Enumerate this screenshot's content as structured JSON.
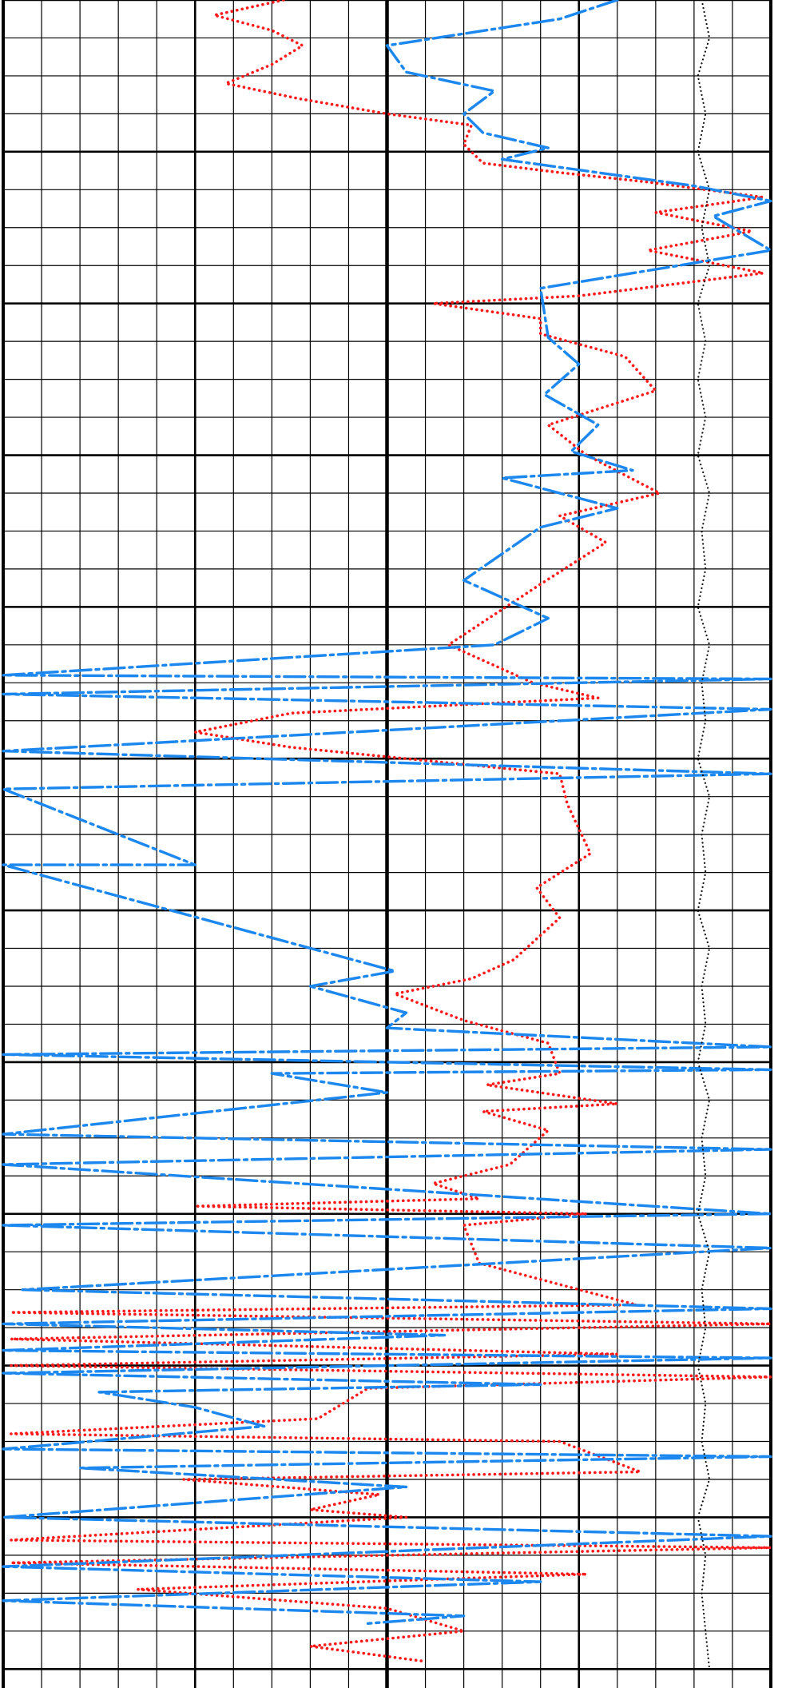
{
  "chart_data": {
    "type": "line",
    "title": "",
    "xlabel": "",
    "ylabel": "",
    "grid": true,
    "legend": "none",
    "major_depth_rows": [
      0,
      4,
      8,
      12,
      16,
      20,
      24,
      28,
      32,
      36,
      40,
      44
    ],
    "major_x_cols": [
      0,
      5,
      10,
      15,
      20
    ],
    "series": [
      {
        "key": "red",
        "color": "#ff1a1a",
        "style": "dotted",
        "points": [
          [
            7.3,
            0.0
          ],
          [
            5.5,
            0.4
          ],
          [
            7.0,
            0.8
          ],
          [
            7.8,
            1.2
          ],
          [
            7.0,
            1.7
          ],
          [
            5.8,
            2.2
          ],
          [
            7.7,
            2.6
          ],
          [
            10.0,
            3.0
          ],
          [
            12.2,
            3.3
          ],
          [
            12.0,
            3.8
          ],
          [
            12.5,
            4.3
          ],
          [
            14.5,
            4.55
          ],
          [
            16.8,
            4.8
          ],
          [
            19.8,
            5.2
          ],
          [
            17.0,
            5.6
          ],
          [
            19.5,
            6.1
          ],
          [
            16.8,
            6.6
          ],
          [
            19.8,
            7.2
          ],
          [
            15.0,
            7.8
          ],
          [
            11.2,
            8.0
          ],
          [
            14.0,
            8.4
          ],
          [
            14.0,
            8.8
          ],
          [
            16.2,
            9.4
          ],
          [
            17.0,
            10.3
          ],
          [
            14.2,
            11.2
          ],
          [
            15.2,
            12.0
          ],
          [
            17.1,
            13.0
          ],
          [
            14.5,
            13.6
          ],
          [
            15.7,
            14.3
          ],
          [
            14.0,
            15.4
          ],
          [
            11.6,
            17.0
          ],
          [
            13.8,
            18.0
          ],
          [
            15.5,
            18.4
          ],
          [
            7.5,
            18.8
          ],
          [
            5.0,
            19.3
          ],
          [
            7.5,
            19.7
          ],
          [
            14.5,
            20.4
          ],
          [
            14.7,
            21.2
          ],
          [
            15.3,
            22.5
          ],
          [
            13.9,
            23.4
          ],
          [
            14.5,
            24.2
          ],
          [
            13.3,
            25.3
          ],
          [
            12.2,
            25.8
          ],
          [
            10.2,
            26.2
          ],
          [
            12.0,
            26.9
          ],
          [
            14.2,
            27.5
          ],
          [
            14.5,
            28.3
          ],
          [
            12.6,
            28.6
          ],
          [
            16.0,
            29.1
          ],
          [
            12.5,
            29.3
          ],
          [
            14.2,
            29.8
          ],
          [
            13.2,
            30.7
          ],
          [
            11.2,
            31.2
          ],
          [
            12.4,
            31.6
          ],
          [
            5.0,
            31.8
          ],
          [
            15.2,
            32.0
          ],
          [
            12.0,
            32.3
          ],
          [
            12.4,
            33.3
          ],
          [
            16.5,
            34.4
          ],
          [
            0.2,
            34.6
          ],
          [
            20.0,
            34.9
          ],
          [
            0.2,
            35.3
          ],
          [
            16.0,
            35.7
          ],
          [
            0.2,
            36.0
          ],
          [
            20.0,
            36.3
          ],
          [
            9.5,
            36.6
          ],
          [
            8.2,
            37.4
          ],
          [
            0.2,
            37.8
          ],
          [
            14.5,
            38.0
          ],
          [
            16.6,
            38.8
          ],
          [
            4.7,
            39.0
          ],
          [
            9.8,
            39.4
          ],
          [
            8.0,
            39.8
          ],
          [
            10.5,
            40.0
          ],
          [
            0.2,
            40.6
          ],
          [
            20.0,
            40.8
          ],
          [
            0.2,
            41.2
          ],
          [
            15.2,
            41.5
          ],
          [
            3.5,
            41.9
          ],
          [
            10.0,
            42.4
          ],
          [
            12.0,
            43.0
          ],
          [
            8.0,
            43.4
          ],
          [
            9.5,
            43.6
          ],
          [
            11.0,
            43.8
          ]
        ]
      },
      {
        "key": "blue",
        "color": "#1b87ef",
        "style": "dash-dot",
        "points": [
          [
            16.0,
            0.0
          ],
          [
            14.5,
            0.5
          ],
          [
            10.0,
            1.2
          ],
          [
            10.5,
            1.9
          ],
          [
            12.8,
            2.4
          ],
          [
            12.0,
            3.0
          ],
          [
            12.5,
            3.5
          ],
          [
            14.2,
            3.9
          ],
          [
            13.0,
            4.2
          ],
          [
            18.0,
            4.9
          ],
          [
            20.0,
            5.3
          ],
          [
            18.5,
            5.7
          ],
          [
            20.0,
            6.6
          ],
          [
            14.0,
            7.6
          ],
          [
            14.2,
            8.9
          ],
          [
            15.0,
            9.6
          ],
          [
            14.1,
            10.4
          ],
          [
            15.5,
            11.2
          ],
          [
            14.8,
            11.9
          ],
          [
            16.4,
            12.4
          ],
          [
            13.0,
            12.6
          ],
          [
            16.0,
            13.4
          ],
          [
            14.0,
            13.9
          ],
          [
            12.0,
            15.3
          ],
          [
            14.2,
            16.3
          ],
          [
            12.8,
            17.0
          ],
          [
            0.0,
            17.8
          ],
          [
            20.0,
            17.9
          ],
          [
            0.0,
            18.3
          ],
          [
            20.0,
            18.7
          ],
          [
            0.0,
            19.8
          ],
          [
            20.0,
            20.4
          ],
          [
            0.0,
            20.8
          ],
          [
            5.0,
            22.8
          ],
          [
            0.0,
            22.8
          ],
          [
            10.2,
            25.6
          ],
          [
            8.0,
            26.0
          ],
          [
            10.5,
            26.7
          ],
          [
            10.0,
            27.1
          ],
          [
            20.0,
            27.6
          ],
          [
            0.0,
            27.8
          ],
          [
            20.0,
            28.2
          ],
          [
            7.0,
            28.3
          ],
          [
            10.0,
            28.8
          ],
          [
            0.0,
            29.9
          ],
          [
            20.0,
            30.3
          ],
          [
            0.0,
            30.7
          ],
          [
            20.0,
            32.0
          ],
          [
            0.0,
            32.3
          ],
          [
            20.0,
            32.9
          ],
          [
            0.5,
            34.0
          ],
          [
            20.0,
            34.5
          ],
          [
            0.0,
            34.9
          ],
          [
            11.5,
            35.2
          ],
          [
            0.0,
            35.6
          ],
          [
            20.0,
            35.8
          ],
          [
            0.0,
            36.2
          ],
          [
            14.0,
            36.5
          ],
          [
            2.5,
            36.7
          ],
          [
            5.0,
            37.1
          ],
          [
            6.8,
            37.6
          ],
          [
            0.0,
            38.2
          ],
          [
            20.0,
            38.4
          ],
          [
            2.0,
            38.7
          ],
          [
            10.5,
            39.2
          ],
          [
            0.0,
            40.0
          ],
          [
            20.0,
            40.5
          ],
          [
            0.0,
            41.3
          ],
          [
            14.0,
            41.7
          ],
          [
            0.0,
            42.2
          ],
          [
            12.0,
            42.6
          ],
          [
            9.5,
            42.8
          ]
        ]
      },
      {
        "key": "black",
        "color": "#111111",
        "style": "fine-dotted",
        "points": [
          [
            18.2,
            0.0
          ],
          [
            18.4,
            1.0
          ],
          [
            18.1,
            2.0
          ],
          [
            18.3,
            3.0
          ],
          [
            18.1,
            4.0
          ],
          [
            18.4,
            5.0
          ],
          [
            18.2,
            6.0
          ],
          [
            18.4,
            7.0
          ],
          [
            18.1,
            8.0
          ],
          [
            18.3,
            9.0
          ],
          [
            18.1,
            10.0
          ],
          [
            18.3,
            11.0
          ],
          [
            18.1,
            12.0
          ],
          [
            18.4,
            13.0
          ],
          [
            18.2,
            14.0
          ],
          [
            18.3,
            15.0
          ],
          [
            18.1,
            16.0
          ],
          [
            18.4,
            17.0
          ],
          [
            18.2,
            18.0
          ],
          [
            18.3,
            19.0
          ],
          [
            18.1,
            20.0
          ],
          [
            18.4,
            21.0
          ],
          [
            18.2,
            22.0
          ],
          [
            18.3,
            23.0
          ],
          [
            18.1,
            24.0
          ],
          [
            18.4,
            25.0
          ],
          [
            18.2,
            26.0
          ],
          [
            18.3,
            27.0
          ],
          [
            18.1,
            28.0
          ],
          [
            18.4,
            29.0
          ],
          [
            18.2,
            30.0
          ],
          [
            18.3,
            31.0
          ],
          [
            18.1,
            32.0
          ],
          [
            18.4,
            33.0
          ],
          [
            18.2,
            34.0
          ],
          [
            18.3,
            35.0
          ],
          [
            18.1,
            36.0
          ],
          [
            18.3,
            37.0
          ],
          [
            18.2,
            38.0
          ],
          [
            18.4,
            39.0
          ],
          [
            18.1,
            40.0
          ],
          [
            18.3,
            41.0
          ],
          [
            18.2,
            42.0
          ],
          [
            18.3,
            43.0
          ],
          [
            18.4,
            44.0
          ]
        ]
      }
    ]
  }
}
